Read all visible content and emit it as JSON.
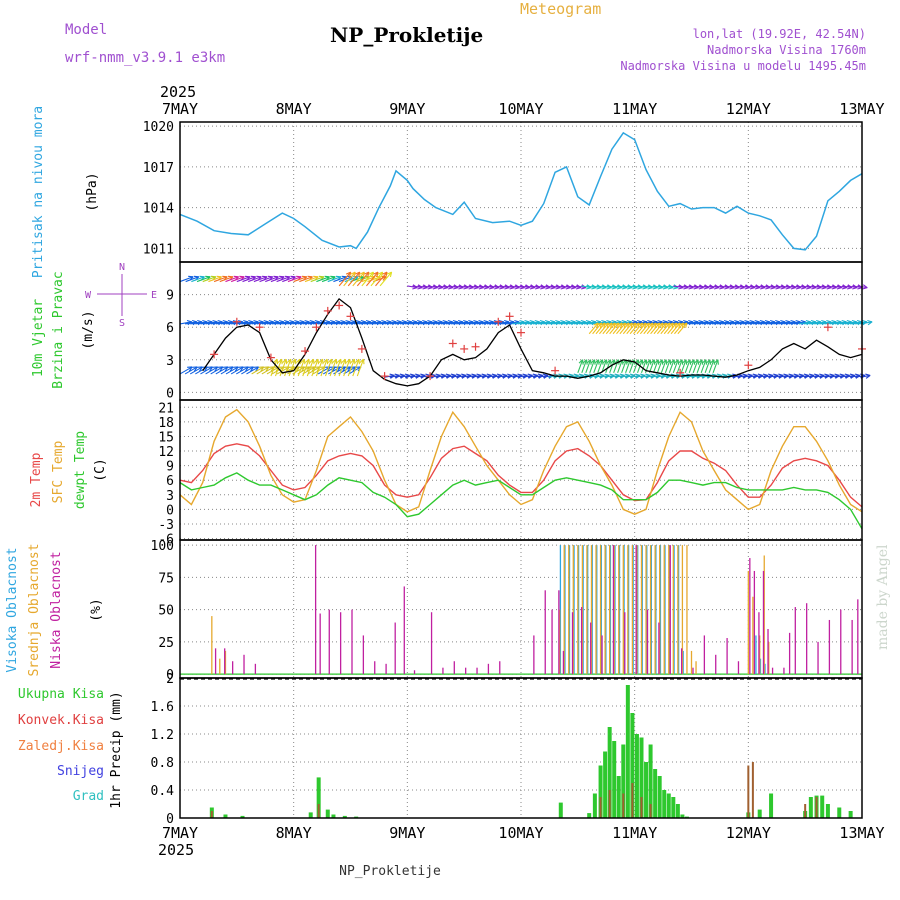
{
  "header": {
    "model_label": "Model",
    "model_value": "wrf-nmm_v3.9.1 e3km",
    "title": "NP_Prokletije",
    "meteogram": "Meteogram",
    "coords": "lon,lat (19.92E, 42.54N)",
    "altitude": "Nadmorska Visina 1760m",
    "model_altitude": "Nadmorska Visina u modelu 1495.45m",
    "year": "2025"
  },
  "footer": {
    "station": "NP_Prokletije",
    "credit": "made by Angel"
  },
  "colors": {
    "pressure": "#2fa6e0",
    "wind_obs": "#000000",
    "gust": "#e04040",
    "t2m": "#e84848",
    "sfc": "#e6a82e",
    "dew": "#2ec82e",
    "high": "#2fa6e0",
    "mid": "#e6a82e",
    "low": "#c020a0",
    "precip": "#2ec82e",
    "conv": "#e04040"
  },
  "chart_data": [
    {
      "id": "pressure",
      "type": "line",
      "title": "Pritisak na nivou mora",
      "ylabel": "(hPa)",
      "x_unit": "days since 7MAY 00UTC",
      "categories": [
        "7MAY",
        "8MAY",
        "9MAY",
        "10MAY",
        "11MAY",
        "12MAY",
        "13MAY"
      ],
      "ylim": [
        1010,
        1020.3
      ],
      "yticks": [
        1011,
        1014,
        1017,
        1020
      ],
      "series": [
        {
          "name": "MSLP",
          "x": [
            0,
            0.15,
            0.3,
            0.45,
            0.6,
            0.75,
            0.9,
            1.0,
            1.1,
            1.25,
            1.4,
            1.5,
            1.55,
            1.65,
            1.75,
            1.85,
            1.9,
            2.0,
            2.05,
            2.15,
            2.25,
            2.4,
            2.5,
            2.6,
            2.75,
            2.9,
            3.0,
            3.1,
            3.2,
            3.3,
            3.4,
            3.5,
            3.6,
            3.7,
            3.8,
            3.9,
            4.0,
            4.1,
            4.2,
            4.3,
            4.4,
            4.5,
            4.6,
            4.7,
            4.8,
            4.9,
            5.0,
            5.1,
            5.2,
            5.3,
            5.4,
            5.5,
            5.6,
            5.7,
            5.8,
            5.9,
            6.0
          ],
          "values": [
            1013.5,
            1013.0,
            1012.3,
            1012.1,
            1012.0,
            1012.8,
            1013.6,
            1013.2,
            1012.6,
            1011.6,
            1011.1,
            1011.2,
            1011.0,
            1012.2,
            1014.0,
            1015.6,
            1016.7,
            1016.0,
            1015.4,
            1014.6,
            1014.0,
            1013.5,
            1014.4,
            1013.2,
            1012.9,
            1013.0,
            1012.7,
            1013.0,
            1014.3,
            1016.6,
            1017.0,
            1014.8,
            1014.2,
            1016.3,
            1018.3,
            1019.5,
            1019.0,
            1016.8,
            1015.2,
            1014.1,
            1014.3,
            1013.9,
            1014.0,
            1014.0,
            1013.6,
            1014.1,
            1013.6,
            1013.4,
            1013.1,
            1012.0,
            1011.0,
            1010.9,
            1011.9,
            1014.5,
            1015.2,
            1016.0,
            1016.5
          ]
        }
      ]
    },
    {
      "id": "wind",
      "type": "line",
      "title": "10m Vjetar",
      "title2": "Brzina i Pravac",
      "ylabel": "(m/s)",
      "compass": {
        "north": "N",
        "west": "W",
        "east": "E",
        "south": "S"
      },
      "ylim": [
        -0.7,
        12
      ],
      "yticks": [
        0,
        3,
        6,
        9
      ],
      "series": [
        {
          "name": "speed",
          "x": [
            0.2,
            0.3,
            0.4,
            0.5,
            0.6,
            0.7,
            0.8,
            0.9,
            1.0,
            1.1,
            1.2,
            1.3,
            1.4,
            1.5,
            1.6,
            1.7,
            1.8,
            1.9,
            2.0,
            2.1,
            2.2,
            2.3,
            2.4,
            2.5,
            2.6,
            2.7,
            2.8,
            2.9,
            3.0,
            3.1,
            3.2,
            3.3,
            3.4,
            3.5,
            3.6,
            3.7,
            3.8,
            3.9,
            4.0,
            4.1,
            4.2,
            4.3,
            4.4,
            4.5,
            4.6,
            4.7,
            4.8,
            4.9,
            5.0,
            5.1,
            5.2,
            5.3,
            5.4,
            5.5,
            5.6,
            5.7,
            5.8,
            5.9,
            6.0
          ],
          "values": [
            2.0,
            3.5,
            5.0,
            6.0,
            6.2,
            5.5,
            3.0,
            1.8,
            2.0,
            3.5,
            5.5,
            7.2,
            8.6,
            7.8,
            5.0,
            2.0,
            1.2,
            0.8,
            0.6,
            0.8,
            1.5,
            3.0,
            3.5,
            3.0,
            3.2,
            4.0,
            5.5,
            6.2,
            4.0,
            2.0,
            1.8,
            1.5,
            1.5,
            1.3,
            1.5,
            1.8,
            2.5,
            3.0,
            2.8,
            2.0,
            1.8,
            1.6,
            1.5,
            1.6,
            1.6,
            1.5,
            1.4,
            1.6,
            2.0,
            2.3,
            3.0,
            4.0,
            4.5,
            4.0,
            4.8,
            4.2,
            3.5,
            3.2,
            3.5
          ]
        },
        {
          "name": "gusts",
          "x": [
            0.3,
            0.5,
            0.7,
            0.8,
            1.1,
            1.2,
            1.3,
            1.4,
            1.5,
            1.6,
            1.8,
            2.2,
            2.4,
            2.5,
            2.6,
            2.8,
            2.9,
            3.0,
            3.3,
            4.4,
            5.0,
            5.7,
            6.0
          ],
          "values": [
            3.5,
            6.5,
            6.0,
            3.2,
            3.8,
            6.0,
            7.5,
            8.0,
            7.0,
            4.0,
            1.5,
            1.5,
            4.5,
            4.0,
            4.2,
            6.5,
            7.0,
            5.5,
            2.0,
            1.8,
            2.5,
            6.0,
            4.0
          ]
        }
      ]
    },
    {
      "id": "temperature",
      "type": "line",
      "titles": [
        "2m Temp",
        "SFC Temp",
        "dewpt Temp"
      ],
      "ylabel": "(C)",
      "ylim": [
        -6.3,
        22.5
      ],
      "yticks": [
        -6,
        -3,
        0,
        3,
        6,
        9,
        12,
        15,
        18,
        21
      ],
      "x": [
        0,
        0.1,
        0.2,
        0.3,
        0.4,
        0.5,
        0.6,
        0.7,
        0.8,
        0.9,
        1.0,
        1.1,
        1.2,
        1.3,
        1.4,
        1.5,
        1.6,
        1.7,
        1.8,
        1.9,
        2.0,
        2.1,
        2.2,
        2.3,
        2.4,
        2.5,
        2.6,
        2.7,
        2.8,
        2.9,
        3.0,
        3.1,
        3.2,
        3.3,
        3.4,
        3.5,
        3.6,
        3.7,
        3.8,
        3.9,
        4.0,
        4.1,
        4.2,
        4.3,
        4.4,
        4.5,
        4.6,
        4.7,
        4.8,
        4.9,
        5.0,
        5.1,
        5.2,
        5.3,
        5.4,
        5.5,
        5.6,
        5.7,
        5.8,
        5.9,
        6.0
      ],
      "series": [
        {
          "name": "2m Temp",
          "values": [
            6,
            5.5,
            8,
            11.5,
            13,
            13.5,
            13,
            11,
            8,
            5,
            4,
            4.5,
            7,
            10,
            11,
            11.5,
            11,
            9,
            5,
            3,
            2.5,
            3,
            6.5,
            10.5,
            12.5,
            13,
            11.5,
            10,
            7,
            5,
            3.5,
            3.5,
            6,
            10,
            12,
            12.5,
            11,
            9,
            6,
            3,
            1.8,
            2,
            5.5,
            10,
            12,
            12,
            10.5,
            9.5,
            8,
            5,
            2.5,
            2.5,
            5,
            8.5,
            10,
            10.5,
            10,
            9,
            6,
            2.5,
            0.5
          ]
        },
        {
          "name": "SFC Temp",
          "values": [
            3,
            1,
            5.5,
            14,
            19,
            20.5,
            18,
            13,
            7,
            3,
            1.5,
            2,
            8,
            15,
            17,
            19,
            16,
            12,
            6,
            1,
            -0.5,
            0.5,
            8,
            15,
            20,
            17,
            13,
            9,
            6,
            3,
            1,
            2,
            8,
            13,
            17,
            18,
            14,
            9,
            5,
            0,
            -1,
            0,
            8,
            15,
            20,
            18,
            12,
            8,
            4,
            2,
            0,
            1,
            8,
            13,
            17,
            17,
            14,
            10,
            5,
            1,
            -0.5
          ]
        },
        {
          "name": "dewpt Temp",
          "values": [
            5.5,
            4,
            4.5,
            5,
            6.5,
            7.5,
            6,
            5,
            5,
            4,
            3,
            2,
            3,
            5,
            6.5,
            6,
            5.5,
            3.5,
            2.5,
            1,
            -1.5,
            -1,
            1,
            3,
            5,
            6,
            5,
            5.5,
            6,
            4.5,
            3,
            3,
            4.5,
            6,
            6.5,
            6,
            5.5,
            5,
            4,
            2,
            2,
            2,
            3.5,
            6,
            6,
            5.5,
            5,
            5.5,
            5.5,
            4.5,
            4,
            4,
            4,
            4,
            4.5,
            4,
            4,
            3.5,
            2,
            0,
            -4
          ]
        }
      ]
    },
    {
      "id": "clouds",
      "type": "bar",
      "titles": [
        "Visoka Oblacnost",
        "Srednja Oblacnost",
        "Niska Oblacnost"
      ],
      "ylabel": "(%)",
      "ylim": [
        0,
        100
      ],
      "yticks": [
        0,
        25,
        50,
        75,
        100
      ],
      "series": [
        {
          "name": "Visoka",
          "x": [
            3.36,
            3.4,
            3.44,
            3.48,
            3.52,
            3.56,
            3.6,
            3.64,
            3.68,
            3.72,
            3.76,
            3.8,
            3.84,
            3.88,
            3.92,
            3.96,
            4.0,
            4.04,
            4.08,
            4.12,
            4.16,
            4.2,
            4.24,
            4.28,
            4.32,
            4.36,
            4.4,
            4.44,
            5.08,
            5.12,
            5.16
          ],
          "values": [
            100,
            100,
            100,
            100,
            100,
            100,
            100,
            100,
            100,
            100,
            100,
            100,
            100,
            100,
            100,
            100,
            100,
            100,
            100,
            100,
            100,
            100,
            100,
            100,
            100,
            100,
            100,
            18,
            30,
            12,
            8
          ]
        },
        {
          "name": "Srednja",
          "x": [
            0.28,
            0.35,
            0.4,
            3.34,
            3.38,
            3.42,
            3.46,
            3.5,
            3.54,
            3.58,
            3.62,
            3.66,
            3.7,
            3.74,
            3.78,
            3.82,
            3.86,
            3.9,
            3.94,
            3.98,
            4.02,
            4.06,
            4.1,
            4.14,
            4.18,
            4.22,
            4.26,
            4.3,
            4.34,
            4.38,
            4.42,
            4.46,
            4.5,
            4.54,
            5.0,
            5.04,
            5.1,
            5.14,
            5.18
          ],
          "values": [
            45,
            12,
            18,
            50,
            100,
            100,
            100,
            100,
            100,
            100,
            100,
            100,
            100,
            100,
            100,
            100,
            100,
            100,
            100,
            100,
            100,
            100,
            100,
            100,
            100,
            100,
            100,
            100,
            100,
            100,
            100,
            100,
            18,
            10,
            80,
            60,
            30,
            92,
            25
          ]
        },
        {
          "name": "Niska",
          "x": [
            0.3,
            0.38,
            0.45,
            0.55,
            0.65,
            1.18,
            1.22,
            1.3,
            1.4,
            1.5,
            1.6,
            1.7,
            1.8,
            1.88,
            1.96,
            2.05,
            2.2,
            2.3,
            2.4,
            2.5,
            2.6,
            2.7,
            2.8,
            3.1,
            3.2,
            3.26,
            3.32,
            3.36,
            3.44,
            3.52,
            3.6,
            3.7,
            3.8,
            3.9,
            4.0,
            4.1,
            4.2,
            4.3,
            4.4,
            4.5,
            4.6,
            4.7,
            4.8,
            4.9,
            5.0,
            5.04,
            5.08,
            5.12,
            5.16,
            5.2,
            5.3,
            5.35,
            5.4,
            5.5,
            5.6,
            5.7,
            5.8,
            5.9,
            5.95
          ],
          "values": [
            20,
            20,
            10,
            15,
            8,
            100,
            47,
            50,
            48,
            50,
            30,
            10,
            8,
            40,
            68,
            3,
            48,
            5,
            10,
            5,
            5,
            8,
            10,
            30,
            65,
            50,
            65,
            18,
            48,
            52,
            40,
            30,
            100,
            48,
            100,
            50,
            40,
            100,
            20,
            5,
            30,
            15,
            28,
            10,
            90,
            80,
            48,
            80,
            35,
            5,
            5,
            32,
            52,
            55,
            25,
            42,
            50,
            42,
            58
          ]
        }
      ]
    },
    {
      "id": "precip",
      "type": "bar",
      "titles": [
        "Ukupna Kisa",
        "Konvek.Kisa",
        "Zaledj.Kisa",
        "Snijeg",
        "Grad"
      ],
      "ylabel": "1hr Precip (mm)",
      "ylim": [
        0,
        2
      ],
      "yticks": [
        0,
        0.4,
        0.8,
        1.2,
        1.6,
        2
      ],
      "series": [
        {
          "name": "Ukupna",
          "x": [
            0.28,
            0.4,
            0.55,
            1.15,
            1.22,
            1.3,
            1.35,
            1.45,
            1.55,
            3.35,
            3.6,
            3.65,
            3.7,
            3.74,
            3.78,
            3.82,
            3.86,
            3.9,
            3.94,
            3.98,
            4.02,
            4.06,
            4.1,
            4.14,
            4.18,
            4.22,
            4.26,
            4.3,
            4.34,
            4.38,
            4.42,
            4.46,
            5.0,
            5.1,
            5.2,
            5.5,
            5.55,
            5.6,
            5.65,
            5.7,
            5.8,
            5.9
          ],
          "values": [
            0.15,
            0.05,
            0.03,
            0.08,
            0.58,
            0.12,
            0.05,
            0.03,
            0.02,
            0.22,
            0.07,
            0.35,
            0.75,
            0.95,
            1.3,
            1.1,
            0.6,
            1.05,
            1.9,
            1.5,
            1.2,
            1.15,
            0.8,
            1.05,
            0.7,
            0.6,
            0.4,
            0.35,
            0.3,
            0.2,
            0.05,
            0.02,
            0.08,
            0.12,
            0.35,
            0.1,
            0.3,
            0.32,
            0.32,
            0.2,
            0.15,
            0.1
          ]
        },
        {
          "name": "Konvek",
          "x": [
            0.28,
            1.22,
            3.7,
            3.78,
            3.9,
            3.98,
            4.06,
            4.14,
            5.0,
            5.04,
            5.5,
            5.6
          ],
          "values": [
            0.1,
            0.2,
            0.3,
            0.4,
            0.35,
            0.5,
            0.3,
            0.2,
            0.75,
            0.8,
            0.2,
            0.3
          ]
        }
      ]
    }
  ]
}
